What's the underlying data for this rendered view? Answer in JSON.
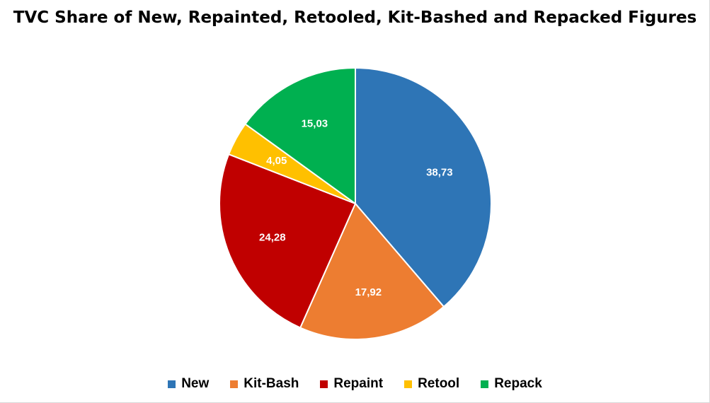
{
  "chart_data": {
    "type": "pie",
    "title": "TVC Share of New, Repainted, Retooled, Kit-Bashed and Repacked Figures",
    "slices": [
      {
        "name": "New",
        "value": 38.73,
        "label": "38,73",
        "color": "#2E75B6"
      },
      {
        "name": "Kit-Bash",
        "value": 17.92,
        "label": "17,92",
        "color": "#ED7D31"
      },
      {
        "name": "Repaint",
        "value": 24.28,
        "label": "24,28",
        "color": "#C00000"
      },
      {
        "name": "Retool",
        "value": 4.05,
        "label": "4,05",
        "color": "#FFC000"
      },
      {
        "name": "Repack",
        "value": 15.03,
        "label": "15,03",
        "color": "#00B050"
      }
    ],
    "legend": {
      "position": "bottom",
      "order": [
        "New",
        "Kit-Bash",
        "Repaint",
        "Retool",
        "Repack"
      ]
    },
    "start_angle": "12 o'clock",
    "direction": "clockwise"
  }
}
